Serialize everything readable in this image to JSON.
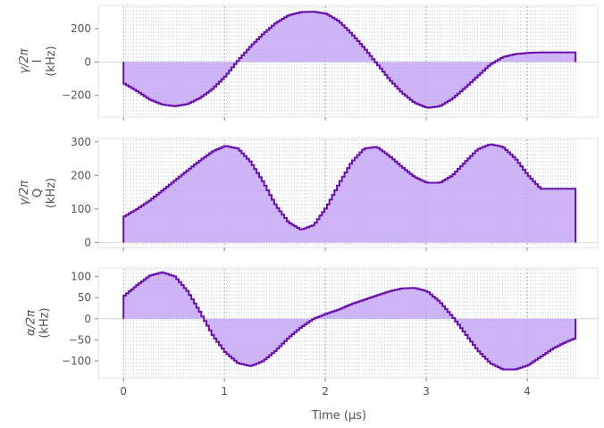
{
  "chart_data": [
    {
      "type": "area",
      "step": true,
      "ylabel": [
        "γ/2π",
        "I",
        "(kHz)"
      ],
      "ylim": [
        -330,
        340
      ],
      "yticks": [
        -200,
        0,
        200
      ],
      "ytick_labels": [
        "−200",
        "0",
        "200"
      ],
      "xlim": [
        -0.25,
        4.7
      ],
      "xticks": [
        0,
        1,
        2,
        3,
        4
      ],
      "grid": true,
      "color": "#6a0dad",
      "fill": "#c4a8f5",
      "series": [
        {
          "x": [
            0,
            0.125,
            0.25,
            0.375,
            0.5,
            0.625,
            0.75,
            0.875,
            1.0,
            1.125,
            1.25,
            1.375,
            1.5,
            1.625,
            1.75,
            1.875,
            2.0,
            2.125,
            2.25,
            2.375,
            2.5,
            2.625,
            2.75,
            2.875,
            3.0,
            3.125,
            3.25,
            3.375,
            3.5,
            3.625,
            3.75,
            3.875,
            4.0,
            4.125,
            4.25,
            4.375,
            4.48
          ],
          "y": [
            -130,
            -175,
            -225,
            -255,
            -265,
            -252,
            -215,
            -160,
            -85,
            10,
            95,
            170,
            235,
            280,
            300,
            302,
            290,
            245,
            170,
            85,
            -10,
            -105,
            -185,
            -245,
            -275,
            -265,
            -220,
            -155,
            -85,
            -15,
            30,
            48,
            55,
            58,
            58,
            58,
            58
          ]
        }
      ]
    },
    {
      "type": "area",
      "step": true,
      "ylabel": [
        "γ/2π",
        "Q",
        "(kHz)"
      ],
      "ylim": [
        -15,
        310
      ],
      "yticks": [
        0,
        100,
        200,
        300
      ],
      "ytick_labels": [
        "0",
        "100",
        "200",
        "300"
      ],
      "xlim": [
        -0.25,
        4.7
      ],
      "xticks": [
        0,
        1,
        2,
        3,
        4
      ],
      "grid": true,
      "color": "#6a0dad",
      "fill": "#c4a8f5",
      "series": [
        {
          "x": [
            0,
            0.125,
            0.25,
            0.375,
            0.5,
            0.625,
            0.75,
            0.875,
            1.0,
            1.125,
            1.25,
            1.375,
            1.5,
            1.625,
            1.75,
            1.875,
            2.0,
            2.125,
            2.25,
            2.375,
            2.5,
            2.625,
            2.75,
            2.875,
            3.0,
            3.125,
            3.25,
            3.375,
            3.5,
            3.625,
            3.75,
            3.875,
            4.0,
            4.125,
            4.25,
            4.375,
            4.48
          ],
          "y": [
            78,
            100,
            125,
            155,
            185,
            215,
            245,
            272,
            288,
            280,
            240,
            180,
            110,
            60,
            38,
            52,
            105,
            175,
            240,
            280,
            285,
            258,
            225,
            195,
            178,
            178,
            200,
            240,
            278,
            293,
            285,
            250,
            200,
            160,
            160,
            160,
            160
          ]
        }
      ]
    },
    {
      "type": "area",
      "step": true,
      "ylabel": [
        "α/2π",
        "(kHz)"
      ],
      "ylim": [
        -140,
        120
      ],
      "yticks": [
        -100,
        -50,
        0,
        50,
        100
      ],
      "ytick_labels": [
        "−100",
        "−50",
        "0",
        "50",
        "100"
      ],
      "xlim": [
        -0.25,
        4.7
      ],
      "xticks": [
        0,
        1,
        2,
        3,
        4
      ],
      "xtick_labels": [
        "0",
        "1",
        "2",
        "3",
        "4"
      ],
      "xlabel": "Time (μs)",
      "grid": true,
      "color": "#6a0dad",
      "fill": "#c4a8f5",
      "series": [
        {
          "x": [
            0,
            0.125,
            0.25,
            0.375,
            0.5,
            0.625,
            0.75,
            0.875,
            1.0,
            1.125,
            1.25,
            1.375,
            1.5,
            1.625,
            1.75,
            1.875,
            2.0,
            2.125,
            2.25,
            2.375,
            2.5,
            2.625,
            2.75,
            2.875,
            3.0,
            3.125,
            3.25,
            3.375,
            3.5,
            3.625,
            3.75,
            3.875,
            4.0,
            4.125,
            4.25,
            4.375,
            4.48
          ],
          "y": [
            55,
            80,
            102,
            110,
            100,
            65,
            15,
            -40,
            -80,
            -105,
            -112,
            -100,
            -75,
            -45,
            -20,
            0,
            12,
            22,
            35,
            45,
            55,
            65,
            72,
            73,
            65,
            40,
            5,
            -35,
            -75,
            -105,
            -120,
            -120,
            -110,
            -90,
            -70,
            -55,
            -45
          ]
        }
      ]
    }
  ]
}
